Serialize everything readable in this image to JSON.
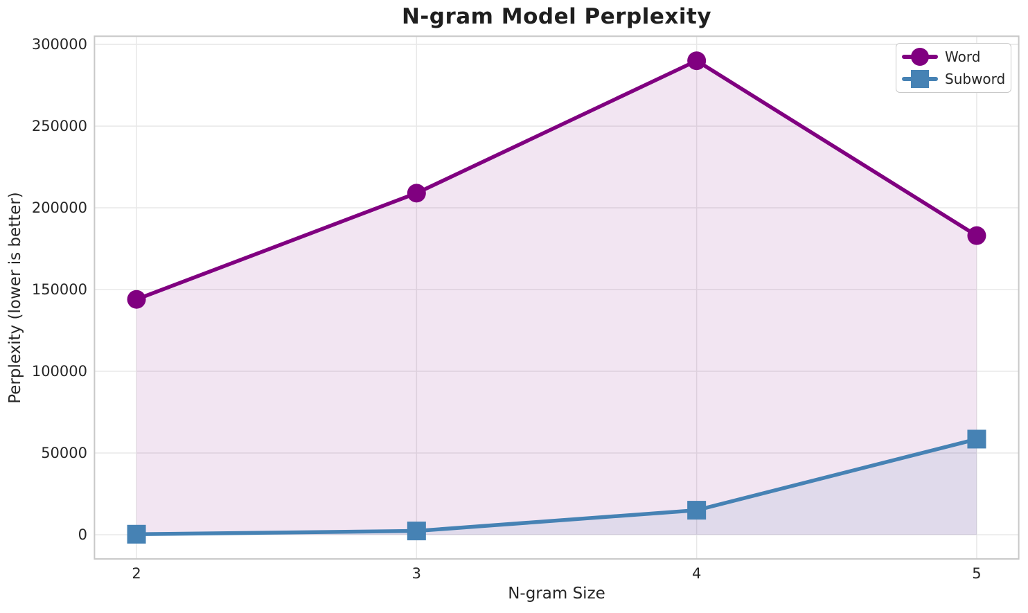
{
  "chart_data": {
    "type": "line",
    "title": "N-gram Model Perplexity",
    "xlabel": "N-gram Size",
    "ylabel": "Perplexity (lower is better)",
    "x": [
      2,
      3,
      4,
      5
    ],
    "series": [
      {
        "name": "Word",
        "color": "#800080",
        "marker": "circle",
        "values": [
          144000,
          209000,
          290000,
          183000
        ]
      },
      {
        "name": "Subword",
        "color": "#4682B4",
        "marker": "square",
        "values": [
          300,
          2300,
          15000,
          58500
        ]
      }
    ],
    "fill_to_zero": true,
    "fill_alpha": 0.1,
    "xticks": [
      2,
      3,
      4,
      5
    ],
    "yticks": [
      0,
      50000,
      100000,
      150000,
      200000,
      250000,
      300000
    ],
    "xlim": [
      1.85,
      5.15
    ],
    "ylim": [
      -14800,
      305000
    ],
    "grid": true,
    "legend_position": "upper right",
    "grid_color": "#e8e8e8",
    "spine_color": "#c8c8c8",
    "text_color": "#262626"
  }
}
